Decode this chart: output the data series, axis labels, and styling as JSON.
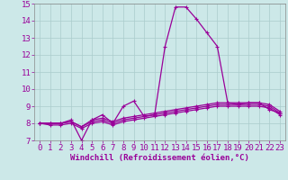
{
  "x": [
    0,
    1,
    2,
    3,
    4,
    5,
    6,
    7,
    8,
    9,
    10,
    11,
    12,
    13,
    14,
    15,
    16,
    17,
    18,
    19,
    20,
    21,
    22,
    23
  ],
  "line1": [
    8.0,
    8.0,
    8.0,
    8.2,
    7.0,
    8.2,
    8.5,
    8.0,
    9.0,
    9.3,
    8.4,
    8.5,
    12.5,
    14.8,
    14.8,
    14.1,
    13.3,
    12.5,
    9.2,
    9.1,
    9.2,
    9.2,
    8.8,
    8.6
  ],
  "line2": [
    8.0,
    8.0,
    8.0,
    8.1,
    7.8,
    8.2,
    8.3,
    8.1,
    8.3,
    8.4,
    8.5,
    8.6,
    8.7,
    8.8,
    8.9,
    9.0,
    9.1,
    9.2,
    9.2,
    9.2,
    9.2,
    9.2,
    9.1,
    8.7
  ],
  "line3": [
    8.0,
    8.0,
    8.0,
    8.1,
    7.8,
    8.1,
    8.2,
    8.0,
    8.2,
    8.3,
    8.4,
    8.5,
    8.6,
    8.7,
    8.8,
    8.9,
    9.0,
    9.1,
    9.1,
    9.1,
    9.1,
    9.1,
    9.0,
    8.6
  ],
  "line4": [
    8.0,
    7.9,
    7.9,
    8.0,
    7.7,
    8.0,
    8.1,
    7.9,
    8.1,
    8.2,
    8.3,
    8.4,
    8.5,
    8.6,
    8.7,
    8.8,
    8.9,
    9.0,
    9.0,
    9.0,
    9.0,
    9.0,
    8.9,
    8.5
  ],
  "line_color": "#990099",
  "bg_color": "#cce8e8",
  "grid_color": "#aacccc",
  "xlabel": "Windchill (Refroidissement éolien,°C)",
  "ylim": [
    7,
    15
  ],
  "xlim": [
    -0.5,
    23.5
  ],
  "yticks": [
    7,
    8,
    9,
    10,
    11,
    12,
    13,
    14,
    15
  ],
  "xticks": [
    0,
    1,
    2,
    3,
    4,
    5,
    6,
    7,
    8,
    9,
    10,
    11,
    12,
    13,
    14,
    15,
    16,
    17,
    18,
    19,
    20,
    21,
    22,
    23
  ],
  "xlabel_fontsize": 6.5,
  "tick_fontsize": 6.5,
  "linewidth": 0.9,
  "markersize": 3.5
}
